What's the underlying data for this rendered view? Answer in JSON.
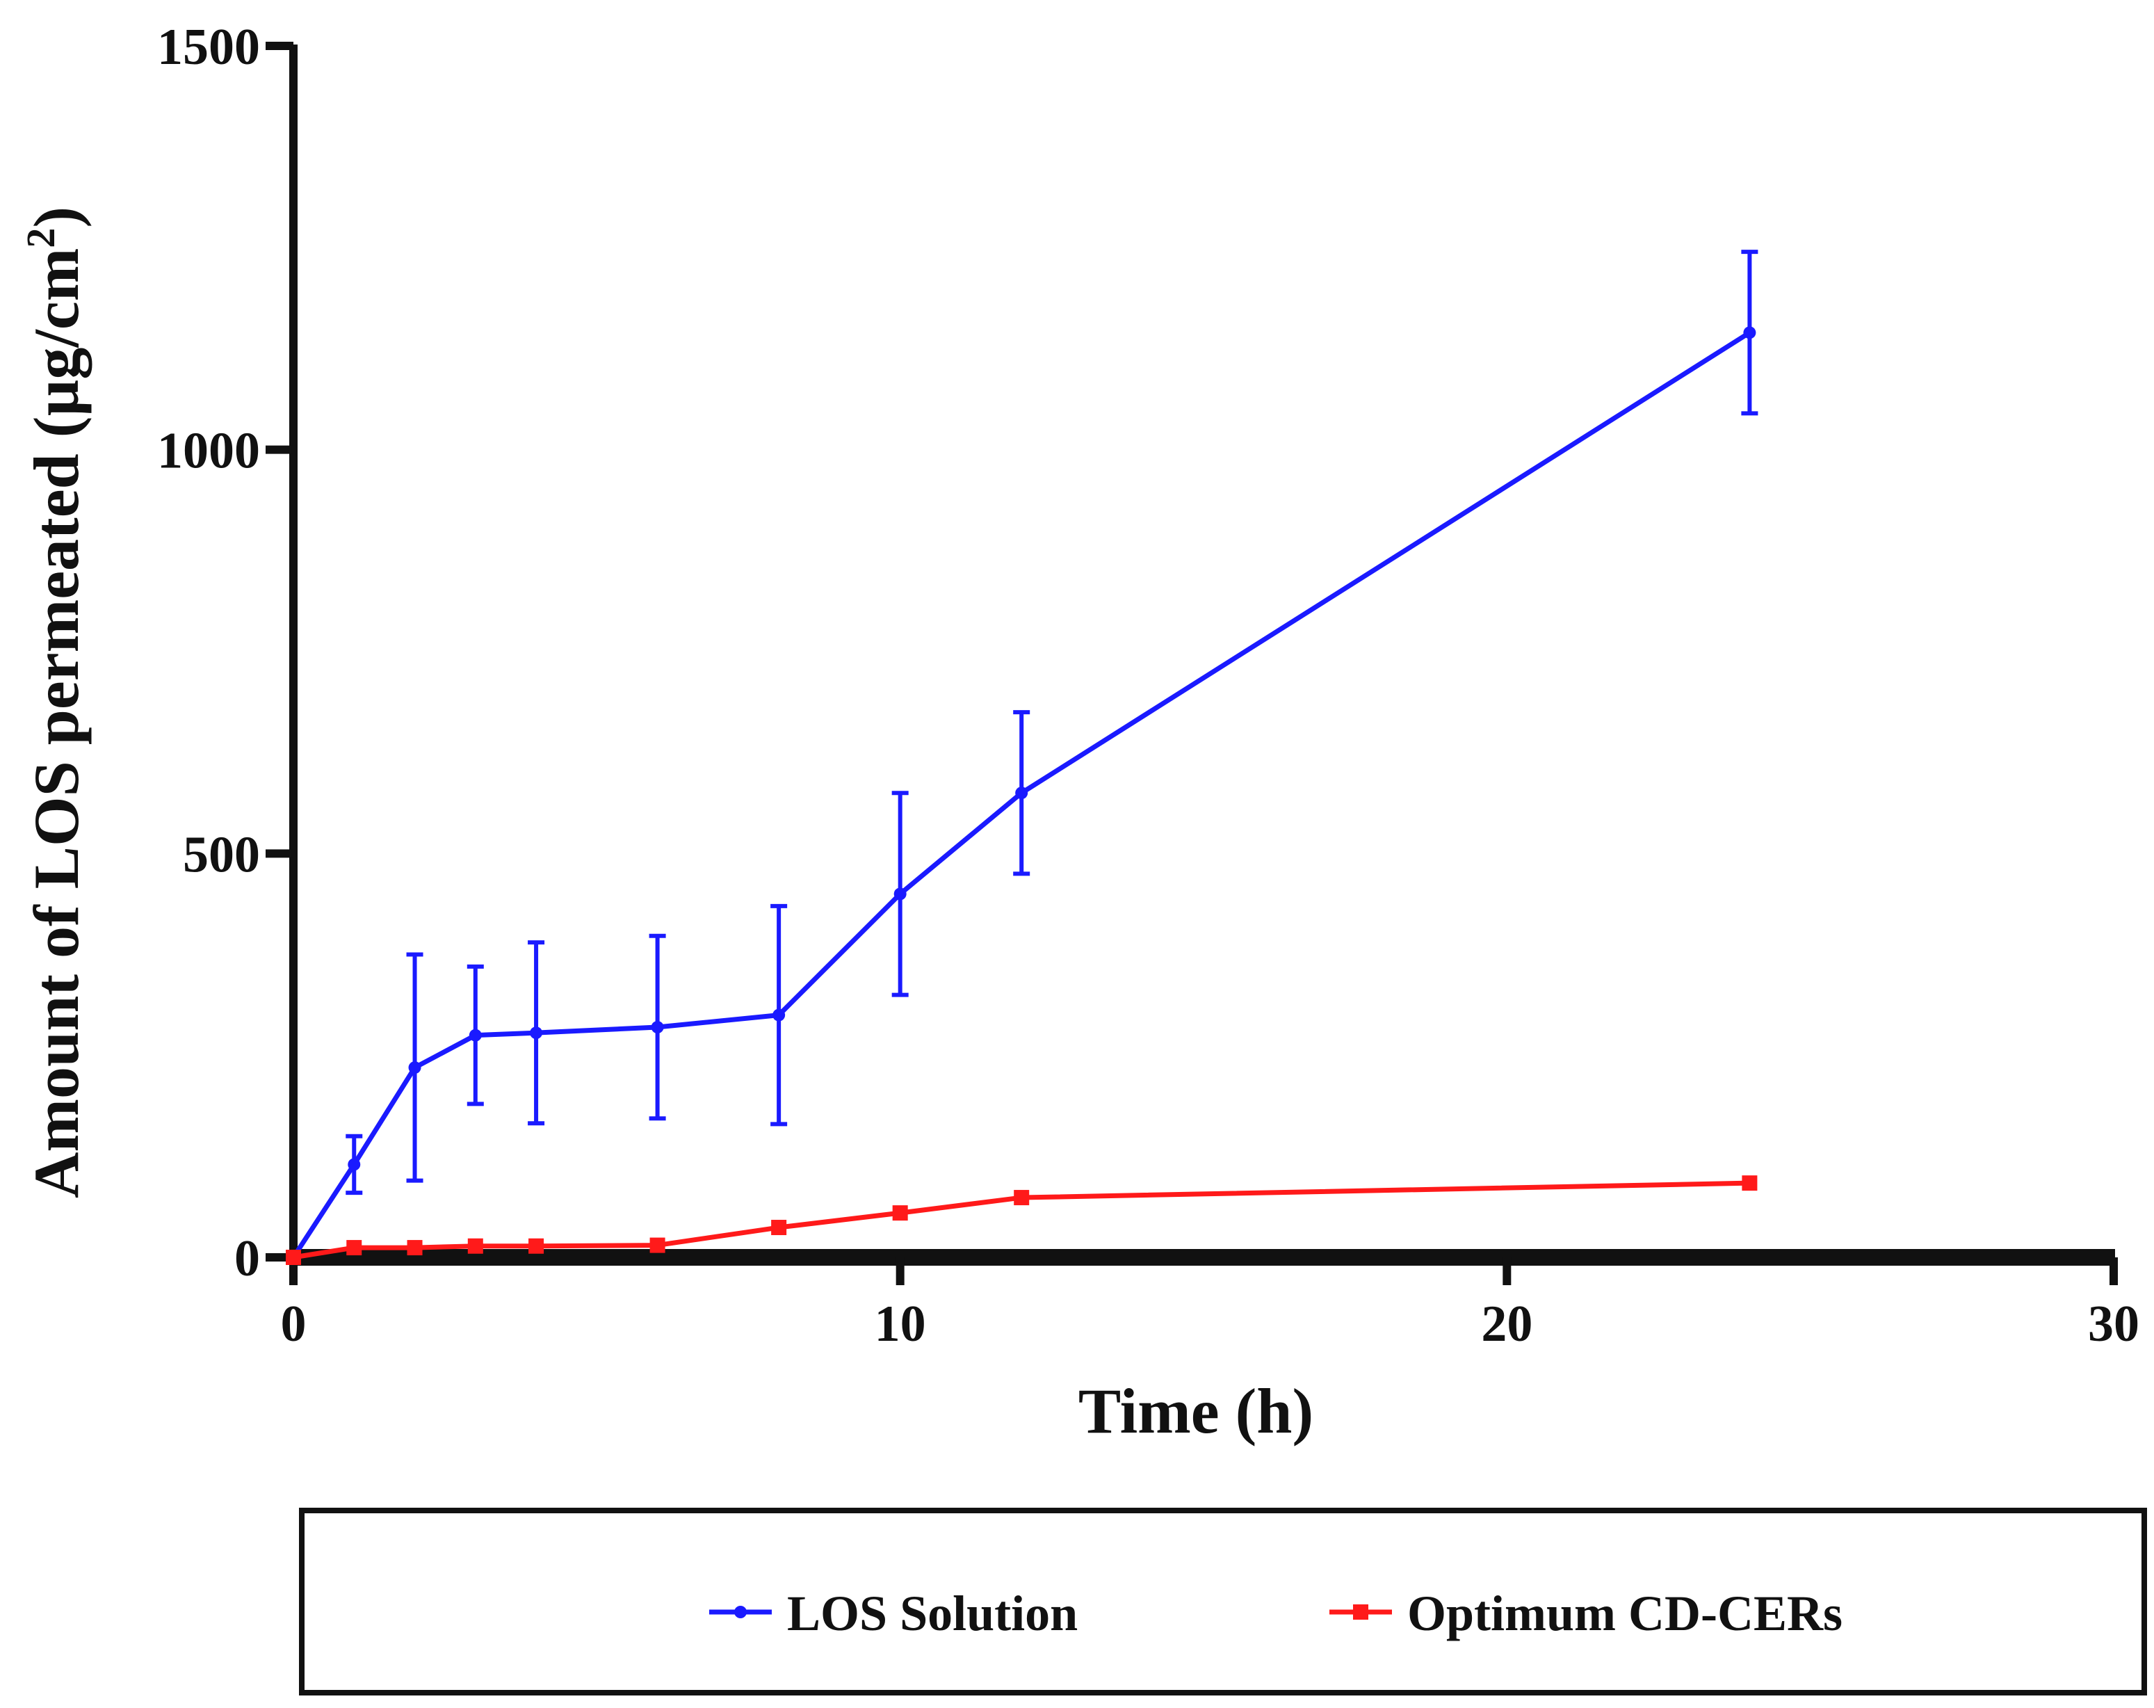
{
  "chart_data": {
    "type": "line",
    "title": "",
    "xlabel": "Time (h)",
    "ylabel": "Amount of LOS permeated (µg/cm",
    "ylabel_sup": "2",
    "ylabel_close": ")",
    "xlim": [
      0,
      30
    ],
    "ylim": [
      0,
      1500
    ],
    "xticks": [
      0,
      10,
      20,
      30
    ],
    "yticks": [
      0,
      500,
      1000,
      1500
    ],
    "xtick_labels": [
      "0",
      "10",
      "20",
      "30"
    ],
    "ytick_labels": [
      "0",
      "500",
      "1000",
      "1500"
    ],
    "grid": false,
    "legend_position": "bottom",
    "series": [
      {
        "name": "LOS Solution",
        "color": "#1a1aff",
        "marker": "circle",
        "x": [
          0,
          1,
          2,
          3,
          4,
          6,
          8,
          10,
          12,
          24
        ],
        "y": [
          0,
          115,
          235,
          275,
          278,
          285,
          300,
          450,
          575,
          1145
        ],
        "error": [
          0,
          35,
          140,
          85,
          112,
          113,
          135,
          125,
          100,
          100
        ]
      },
      {
        "name": "Optimum CD-CERs",
        "color": "#ff1a1a",
        "marker": "square",
        "x": [
          0,
          1,
          2,
          3,
          4,
          6,
          8,
          10,
          12,
          24
        ],
        "y": [
          0,
          12,
          12,
          14,
          14,
          15,
          37,
          55,
          74,
          92
        ],
        "error": [
          0,
          2,
          2,
          2,
          2,
          2,
          4,
          4,
          5,
          5
        ]
      }
    ]
  }
}
